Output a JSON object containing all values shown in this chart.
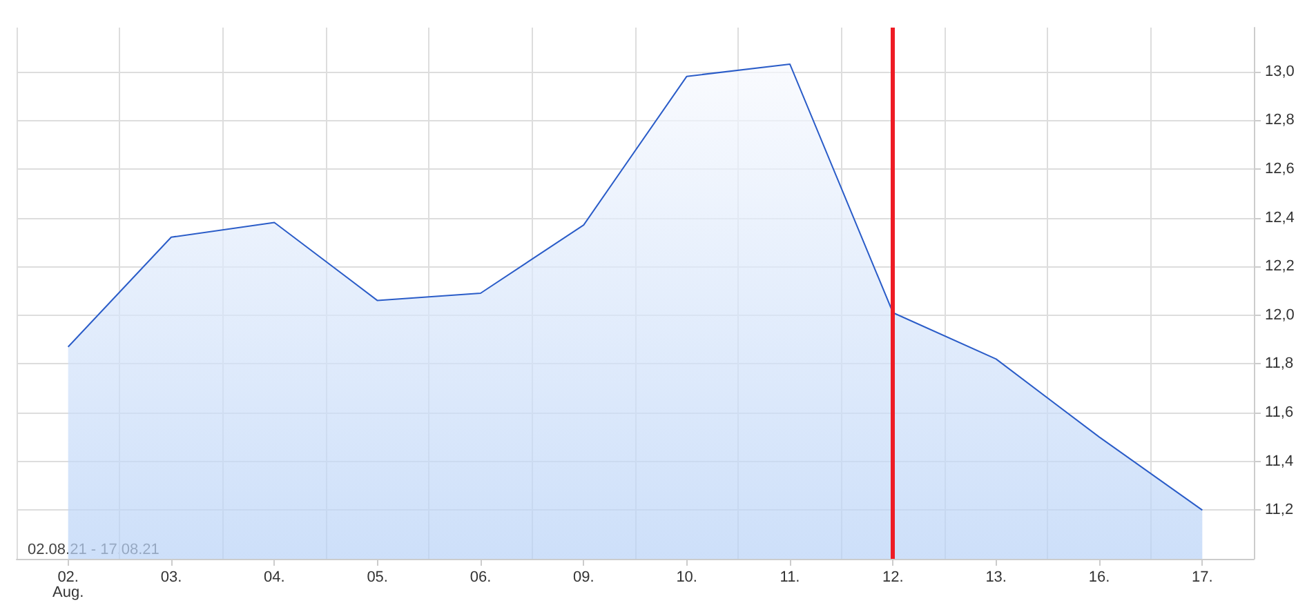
{
  "chart_data": {
    "type": "area",
    "categories": [
      "02.\nAug.",
      "03.",
      "04.",
      "05.",
      "06.",
      "09.",
      "10.",
      "11.",
      "12.",
      "13.",
      "16.",
      "17."
    ],
    "series": [
      {
        "color": "#2a5cc8",
        "values": [
          11.87,
          12.32,
          12.38,
          12.06,
          12.09,
          12.37,
          12.98,
          13.03,
          12.01,
          11.82,
          11.5,
          11.2
        ]
      }
    ],
    "ylim": [
      11.0,
      13.18
    ],
    "yticks": [
      {
        "value": 11.2,
        "label": "11,2"
      },
      {
        "value": 11.4,
        "label": "11,4"
      },
      {
        "value": 11.6,
        "label": "11,6"
      },
      {
        "value": 11.8,
        "label": "11,8"
      },
      {
        "value": 12.0,
        "label": "12,0"
      },
      {
        "value": 12.2,
        "label": "12,2"
      },
      {
        "value": 12.4,
        "label": "12,4"
      },
      {
        "value": 12.6,
        "label": "12,6"
      },
      {
        "value": 12.8,
        "label": "12,8"
      },
      {
        "value": 13.0,
        "label": "13,0"
      }
    ],
    "ref_lines": [
      {
        "axis": "x",
        "value": "12.",
        "color": "#ee1c25"
      }
    ],
    "annotations": [
      "02.08.21 - 17.08.21"
    ],
    "grid": true,
    "marker": "none"
  }
}
